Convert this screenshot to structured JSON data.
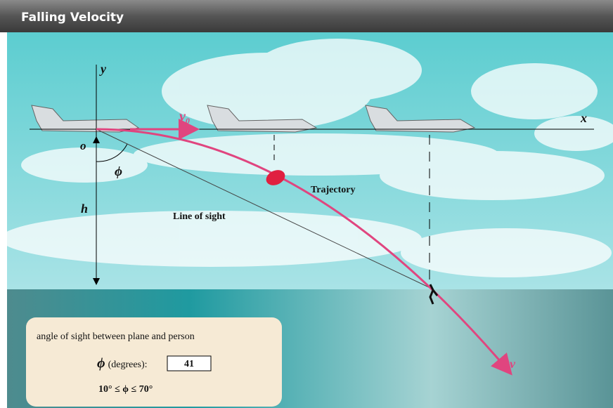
{
  "header": {
    "title": "Falling Velocity"
  },
  "diagram": {
    "y_axis": "y",
    "x_axis": "x",
    "origin": "o",
    "initial_velocity": {
      "base": "v",
      "sub": "0"
    },
    "angle": "ϕ",
    "height": "h",
    "line_of_sight": "Line of sight",
    "trajectory": "Trajectory",
    "final_velocity": "v"
  },
  "panel": {
    "caption": "angle of sight between plane and person",
    "input_label_symbol": "ϕ",
    "input_label_text": "(degrees):",
    "input_value": 41,
    "range": "10° ≤ ϕ ≤ 70°"
  }
}
